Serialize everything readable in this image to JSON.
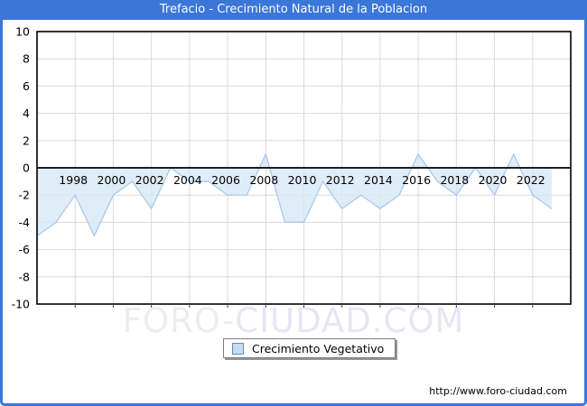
{
  "window": {
    "title": "Trefacio - Crecimiento Natural de la Poblacion",
    "title_bar_color": "#3b76d9",
    "frame_border_color": "#3b76d9"
  },
  "chart_data": {
    "type": "area",
    "title": "Trefacio - Crecimiento Natural de la Poblacion",
    "x": [
      1996,
      1997,
      1998,
      1999,
      2000,
      2001,
      2002,
      2003,
      2004,
      2005,
      2006,
      2007,
      2008,
      2009,
      2010,
      2011,
      2012,
      2013,
      2014,
      2015,
      2016,
      2017,
      2018,
      2019,
      2020,
      2021,
      2022,
      2023
    ],
    "series": [
      {
        "name": "Crecimiento Vegetativo",
        "values": [
          -5,
          -4,
          -2,
          -5,
          -2,
          -1,
          -3,
          0,
          -1,
          -1,
          -2,
          -2,
          1,
          -4,
          -4,
          -1,
          -3,
          -2,
          -3,
          -2,
          1,
          -1,
          -2,
          0,
          -2,
          1,
          -2,
          -3
        ]
      }
    ],
    "xlim": [
      1996,
      2024
    ],
    "ylim": [
      -10,
      10
    ],
    "ytick_labels": [
      "10",
      "8",
      "6",
      "4",
      "2",
      "0",
      "-2",
      "-4",
      "-6",
      "-8",
      "-10"
    ],
    "ytick_values": [
      10,
      8,
      6,
      4,
      2,
      0,
      -2,
      -4,
      -6,
      -8,
      -10
    ],
    "xtick_labels": [
      "1998",
      "2000",
      "2002",
      "2004",
      "2006",
      "2008",
      "2010",
      "2012",
      "2014",
      "2016",
      "2018",
      "2020",
      "2022"
    ],
    "xtick_values": [
      1998,
      2000,
      2002,
      2004,
      2006,
      2008,
      2010,
      2012,
      2014,
      2016,
      2018,
      2020,
      2022
    ],
    "grid": true,
    "grid_color": "#d9d9d9",
    "line_color": "#a6c6e6",
    "fill_color": "#d7e8f7",
    "zero_line_color": "#000000",
    "legend_position": "bottom-center"
  },
  "legend": {
    "label": "Crecimiento Vegetativo",
    "swatch_fill": "#c9dcf0",
    "swatch_border": "#5f8cc0"
  },
  "watermark": {
    "part1": "FORO-",
    "part2": "CIUDAD.COM"
  },
  "footer": {
    "url": "http://www.foro-ciudad.com"
  }
}
